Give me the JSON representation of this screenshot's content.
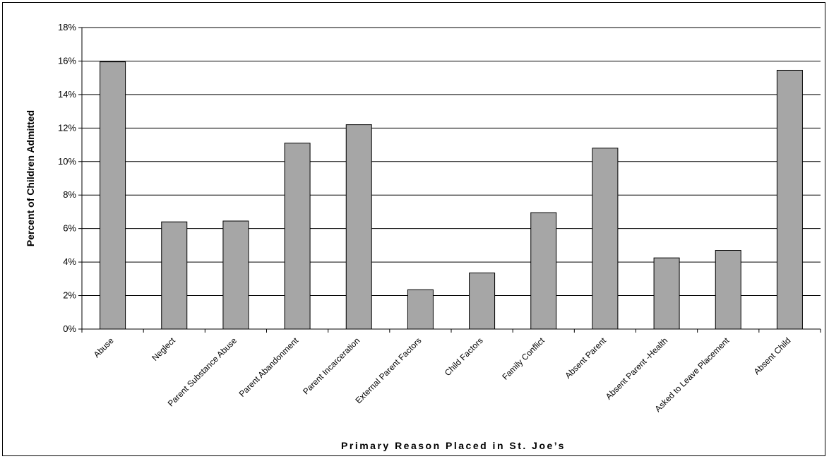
{
  "chart_data": {
    "type": "bar",
    "title": "",
    "xlabel": "Primary Reason Placed in St. Joe’s",
    "ylabel": "Percent of Children Admitted",
    "categories": [
      "Abuse",
      "Neglect",
      "Parent Substance Abuse",
      "Parent Abandonment",
      "Parent Incarceration",
      "External Parent Factors",
      "Child Factors",
      "Family Conflict",
      "Absent Parent",
      "Absent Parent -Health",
      "Asked to Leave Placement",
      "Absent Child"
    ],
    "values": [
      15.95,
      6.4,
      6.45,
      11.1,
      12.2,
      2.35,
      3.35,
      6.95,
      10.8,
      4.25,
      4.7,
      15.45
    ],
    "ylim": [
      0,
      18
    ],
    "yticks": [
      0,
      2,
      4,
      6,
      8,
      10,
      12,
      14,
      16,
      18
    ],
    "ytick_format": "{v}%",
    "grid": true,
    "legend": "none",
    "bar_color": "#a6a6a6",
    "bar_edge_color": "#000000"
  }
}
